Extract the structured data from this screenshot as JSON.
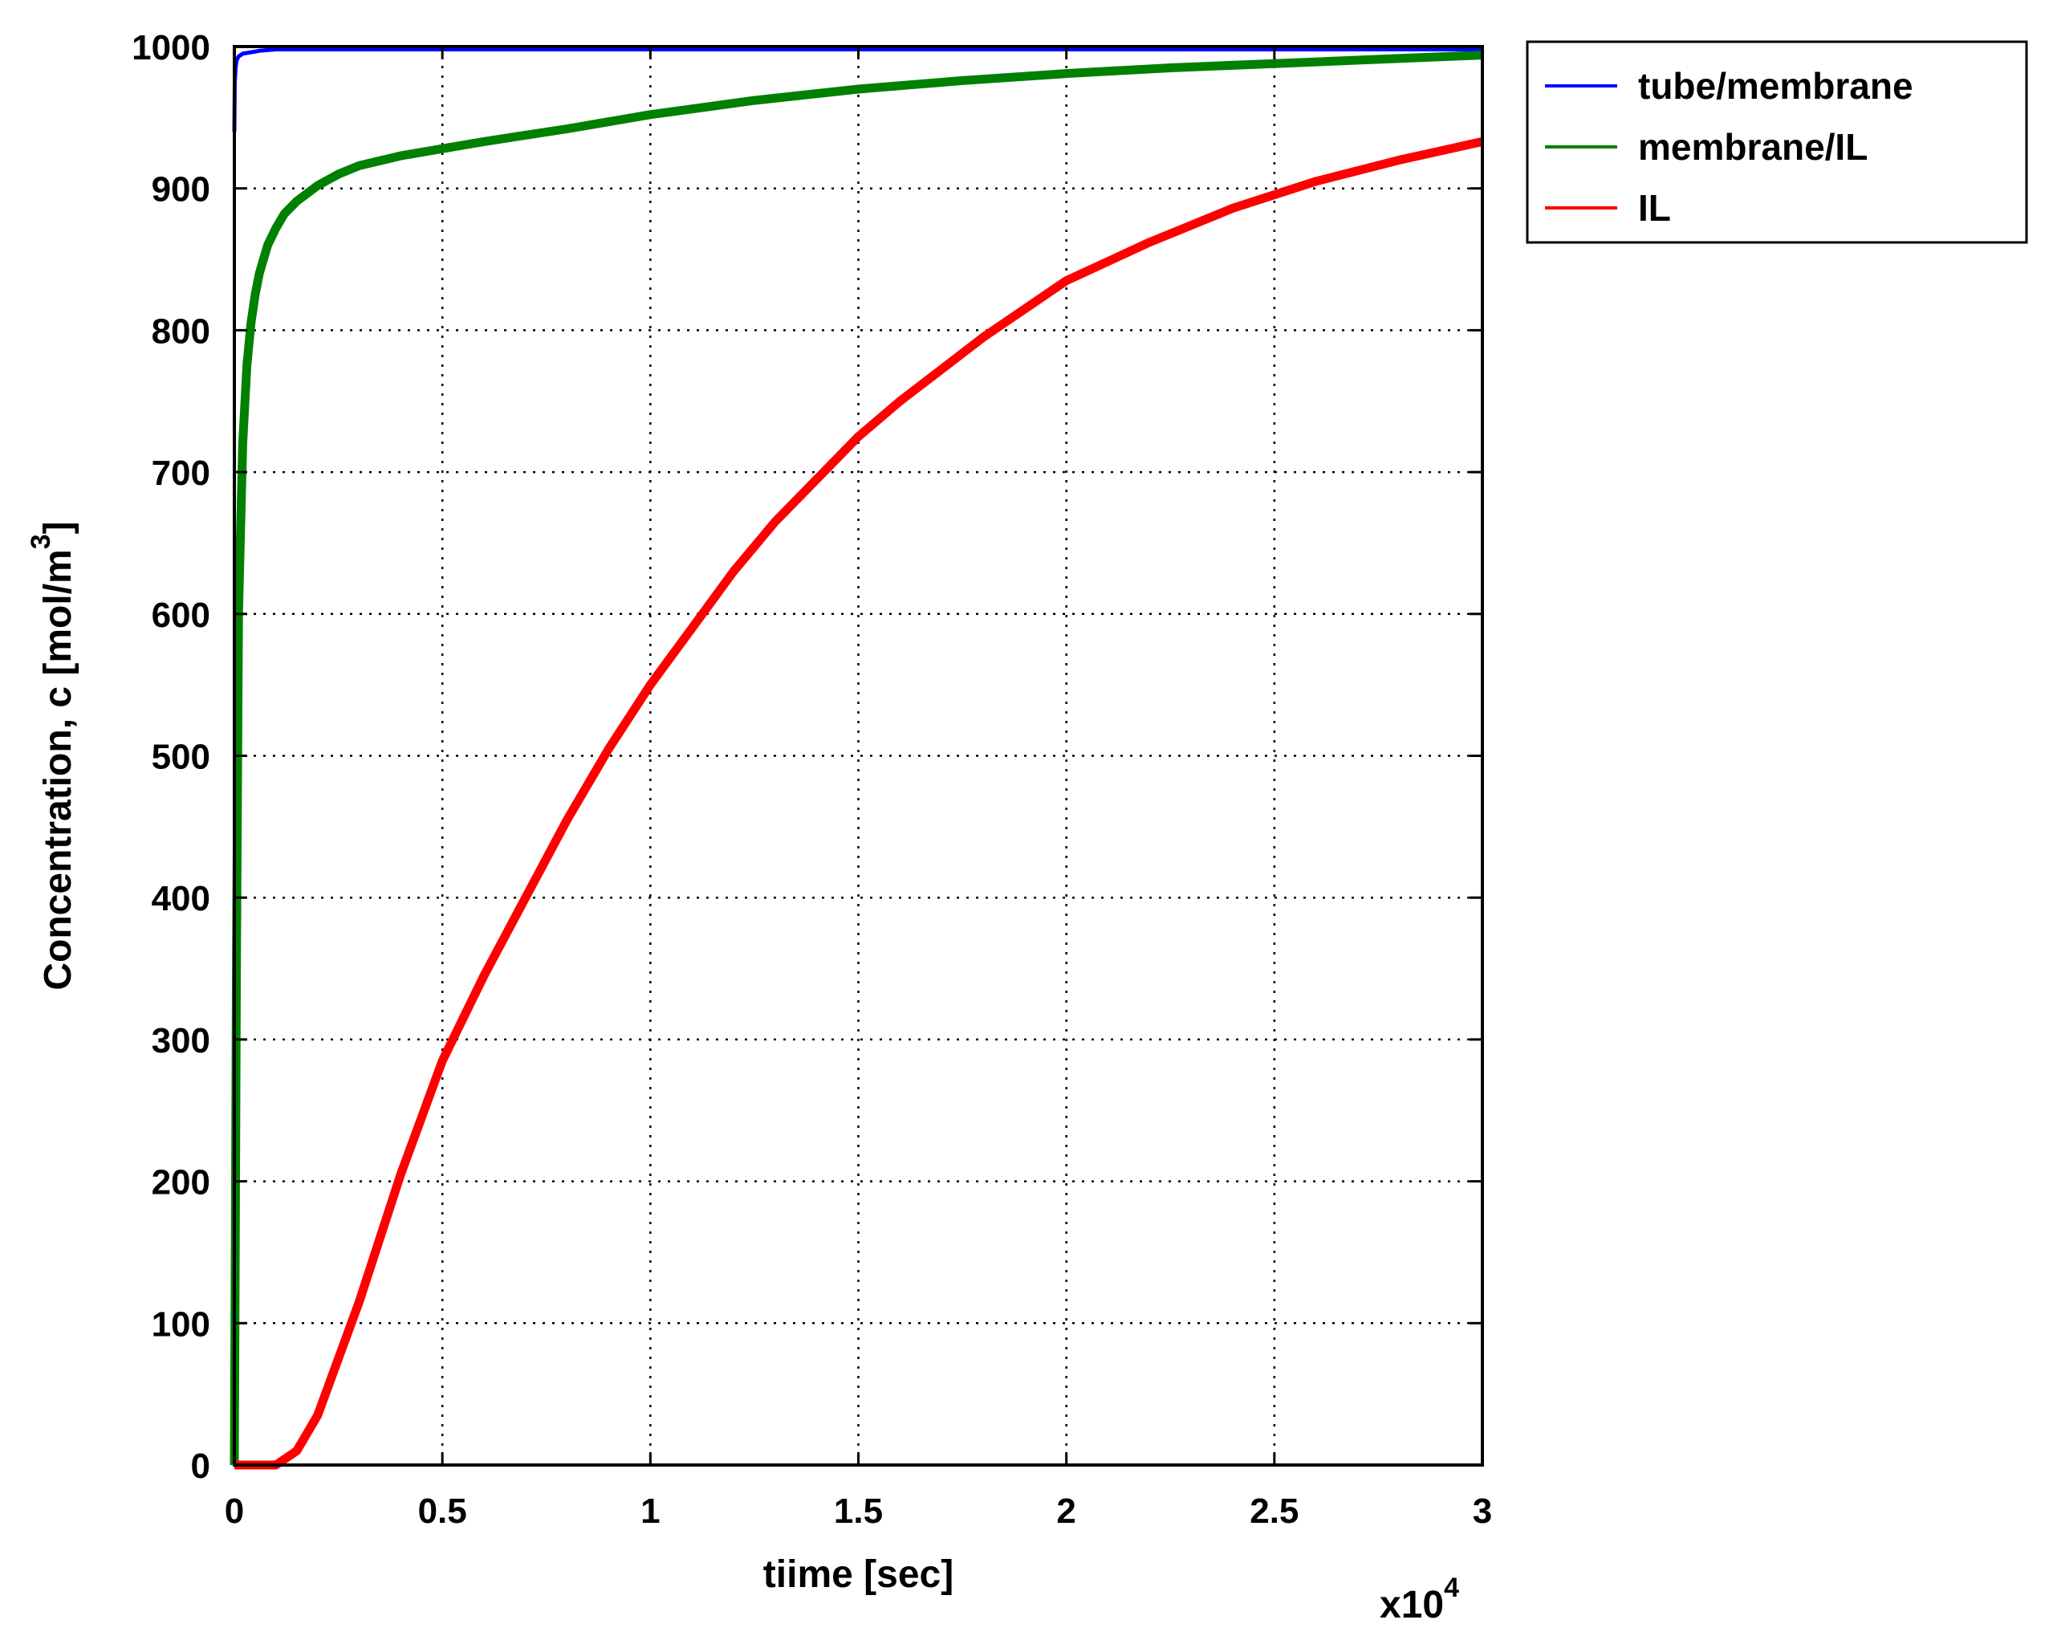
{
  "chart_data": {
    "type": "line",
    "xlabel": "tiime [sec]",
    "ylabel_main": "Concentration, c [mol/m",
    "ylabel_sup": "3",
    "ylabel_end": "]",
    "x_multiplier_base": "x10",
    "x_multiplier_exp": "4",
    "xlim": [
      0,
      3
    ],
    "ylim": [
      0,
      1000
    ],
    "x_ticks": [
      0,
      0.5,
      1,
      1.5,
      2,
      2.5,
      3
    ],
    "x_tick_labels": [
      "0",
      "0.5",
      "1",
      "1.5",
      "2",
      "2.5",
      "3"
    ],
    "y_ticks": [
      0,
      100,
      200,
      300,
      400,
      500,
      600,
      700,
      800,
      900,
      1000
    ],
    "y_tick_labels": [
      "0",
      "100",
      "200",
      "300",
      "400",
      "500",
      "600",
      "700",
      "800",
      "900",
      "1000"
    ],
    "grid": true,
    "legend_position": "outside-top-right",
    "series": [
      {
        "name": "tube/membrane",
        "color": "#0000ff",
        "x": [
          0,
          0.001,
          0.003,
          0.005,
          0.01,
          0.02,
          0.04,
          0.06,
          0.1,
          0.2,
          0.5,
          1,
          2,
          3
        ],
        "y": [
          940,
          975,
          985,
          990,
          993,
          995,
          996,
          997,
          998,
          998,
          998,
          998,
          998,
          998
        ]
      },
      {
        "name": "membrane/IL",
        "color": "#008000",
        "x": [
          0,
          0.005,
          0.01,
          0.02,
          0.03,
          0.04,
          0.05,
          0.06,
          0.08,
          0.1,
          0.12,
          0.15,
          0.2,
          0.25,
          0.3,
          0.4,
          0.5,
          0.6,
          0.8,
          1.0,
          1.25,
          1.5,
          1.75,
          2.0,
          2.25,
          2.5,
          2.75,
          3.0
        ],
        "y": [
          0,
          350,
          600,
          720,
          775,
          805,
          825,
          840,
          860,
          872,
          882,
          891,
          902,
          910,
          916,
          923,
          928,
          933,
          942,
          952,
          962,
          970,
          976,
          981,
          985,
          988,
          991,
          994
        ]
      },
      {
        "name": "IL",
        "color": "#ff0000",
        "x": [
          0,
          0.05,
          0.1,
          0.15,
          0.2,
          0.25,
          0.3,
          0.35,
          0.4,
          0.45,
          0.5,
          0.6,
          0.7,
          0.8,
          0.9,
          1.0,
          1.1,
          1.2,
          1.3,
          1.4,
          1.5,
          1.6,
          1.8,
          2.0,
          2.2,
          2.4,
          2.6,
          2.8,
          3.0
        ],
        "y": [
          0,
          0,
          0,
          10,
          35,
          75,
          115,
          160,
          205,
          245,
          285,
          345,
          400,
          455,
          505,
          550,
          590,
          630,
          665,
          695,
          725,
          750,
          795,
          835,
          862,
          886,
          905,
          920,
          933
        ]
      }
    ]
  }
}
